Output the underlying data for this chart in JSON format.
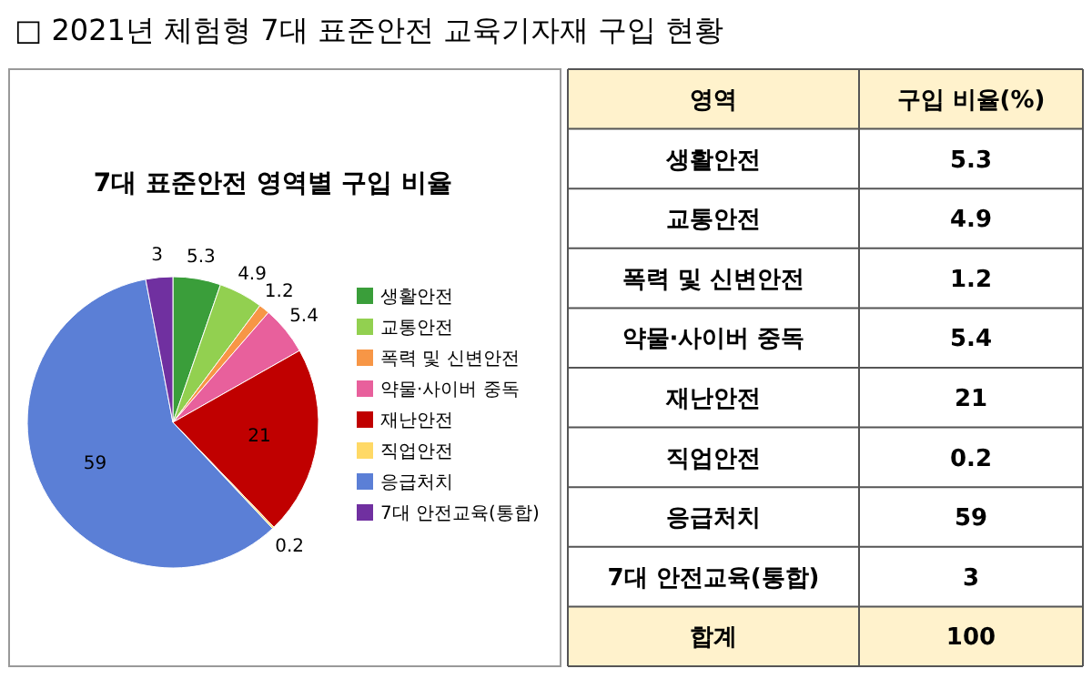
{
  "chart_data": {
    "type": "pie",
    "title": "□ 2021년 체험형 7대 표준안전 교육기자재 구입 현황",
    "subtitle": "7대 표준안전 영역별 구입 비율",
    "categories": [
      "생활안전",
      "교통안전",
      "폭력 및 신변안전",
      "약물·사이버 중독",
      "재난안전",
      "직업안전",
      "응급처치",
      "7대 안전교육(통합)"
    ],
    "values": [
      5.3,
      4.9,
      1.2,
      5.4,
      21,
      0.2,
      59,
      3
    ],
    "colors": [
      "#3a9e3a",
      "#92d050",
      "#f79646",
      "#e8609c",
      "#c00000",
      "#ffd966",
      "#5b7fd6",
      "#7030a0"
    ],
    "data_labels": true,
    "legend": "right",
    "annotations": [
      "영역",
      "구입 비율(%)",
      "5.3",
      "4.9",
      "1.2",
      "5.4",
      "21",
      "0.2",
      "59",
      "3",
      "합계",
      "100"
    ]
  }
}
